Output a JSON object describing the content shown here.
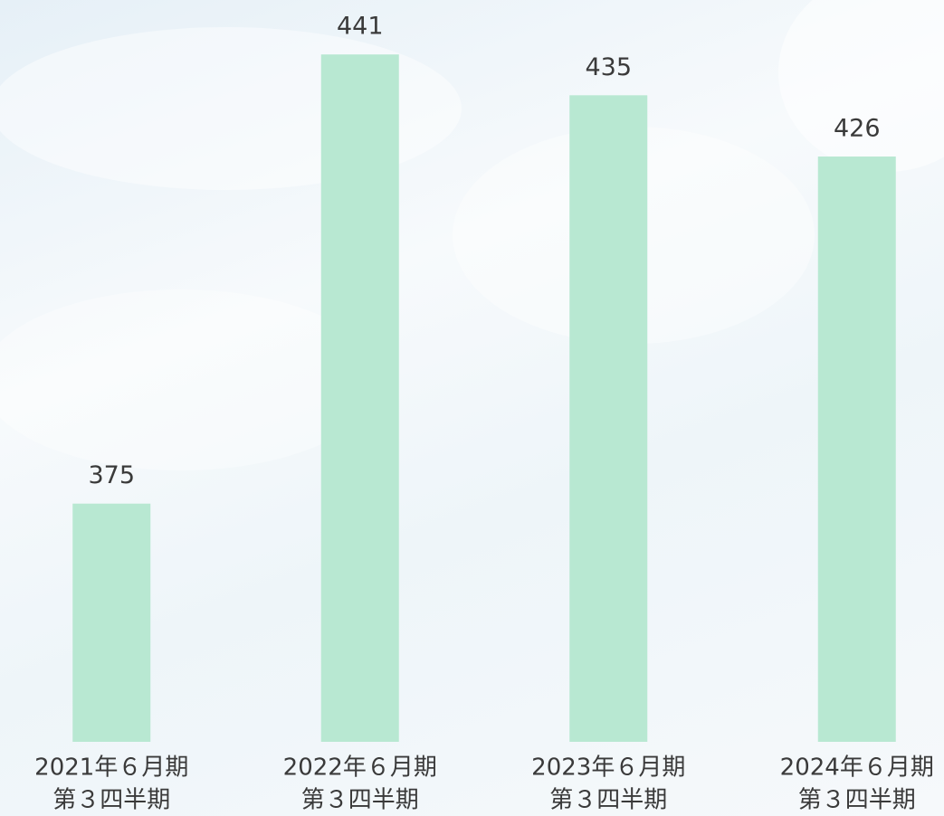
{
  "chart_data": {
    "type": "bar",
    "categories": [
      [
        "2021年６月期",
        "第３四半期"
      ],
      [
        "2022年６月期",
        "第３四半期"
      ],
      [
        "2023年６月期",
        "第３四半期"
      ],
      [
        "2024年６月期",
        "第３四半期"
      ]
    ],
    "values": [
      375,
      441,
      435,
      426
    ],
    "color": "#b8e8d2",
    "ylim": [
      340,
      449
    ]
  }
}
